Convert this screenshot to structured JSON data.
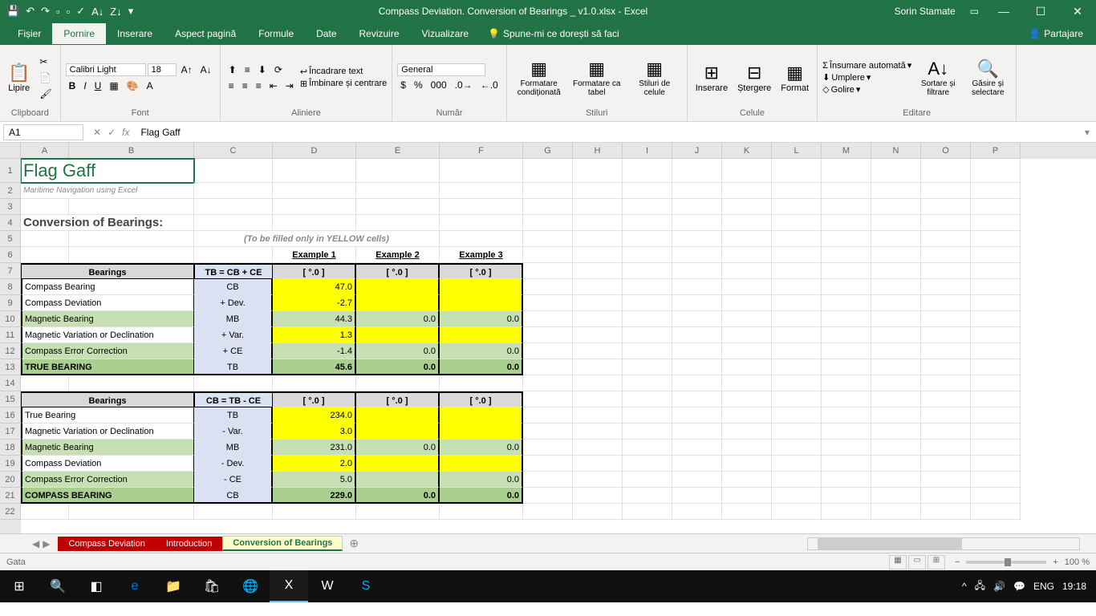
{
  "titleBar": {
    "title": "Compass Deviation. Conversion of Bearings _ v1.0.xlsx - Excel",
    "user": "Sorin Stamate"
  },
  "tabs": {
    "file": "Fișier",
    "home": "Pornire",
    "insert": "Inserare",
    "pageLayout": "Aspect pagină",
    "formulas": "Formule",
    "data": "Date",
    "review": "Revizuire",
    "view": "Vizualizare",
    "tellMe": "Spune-mi ce dorești să faci",
    "share": "Partajare"
  },
  "ribbon": {
    "clipboard": "Clipboard",
    "paste": "Lipire",
    "font": "Font",
    "fontName": "Calibri Light",
    "fontSize": "18",
    "alignment": "Aliniere",
    "wrapText": "Încadrare text",
    "mergeCenter": "Îmbinare și centrare",
    "number": "Număr",
    "numberFormat": "General",
    "styles": "Stiluri",
    "condFormat": "Formatare condiționată",
    "formatTable": "Formatare ca tabel",
    "cellStyles": "Stiluri de celule",
    "cells": "Celule",
    "insert": "Inserare",
    "delete": "Ștergere",
    "format": "Format",
    "editing": "Editare",
    "autoSum": "Însumare automată",
    "fill": "Umplere",
    "clear": "Golire",
    "sortFilter": "Sortare și filtrare",
    "findSelect": "Găsire și selectare"
  },
  "formulaBar": {
    "nameBox": "A1",
    "formula": "Flag Gaff"
  },
  "columns": [
    "A",
    "B",
    "C",
    "D",
    "E",
    "F",
    "G",
    "H",
    "I",
    "J",
    "K",
    "L",
    "M",
    "N",
    "O",
    "P"
  ],
  "content": {
    "a1": "Flag Gaff",
    "a2": "Maritime Navigation using Excel",
    "a4": "Conversion of Bearings:",
    "hint": "(To be filled only in YELLOW cells)",
    "ex1": "Example 1",
    "ex2": "Example 2",
    "ex3": "Example 3",
    "bearings": "Bearings",
    "unit": "[ °.0 ]",
    "tbFormula": "TB = CB + CE",
    "cbFormula": "CB = TB - CE",
    "rows1": [
      {
        "label": "Compass Bearing",
        "code": "CB",
        "d": "47.0",
        "e": "",
        "f": "",
        "style": "white",
        "vstyle": "yellow"
      },
      {
        "label": "Compass Deviation",
        "code": "+ Dev.",
        "d": "-2.7",
        "e": "",
        "f": "",
        "style": "white",
        "vstyle": "yellow"
      },
      {
        "label": "Magnetic Bearing",
        "code": "MB",
        "d": "44.3",
        "e": "0.0",
        "f": "0.0",
        "style": "green",
        "vstyle": "green"
      },
      {
        "label": "Magnetic Variation or Declination",
        "code": "+ Var.",
        "d": "1.3",
        "e": "",
        "f": "",
        "style": "white",
        "vstyle": "yellow"
      },
      {
        "label": "Compass Error Correction",
        "code": "+ CE",
        "d": "-1.4",
        "e": "0.0",
        "f": "0.0",
        "style": "green",
        "vstyle": "green"
      },
      {
        "label": "TRUE BEARING",
        "code": "TB",
        "d": "45.6",
        "e": "0.0",
        "f": "0.0",
        "style": "greenbold",
        "vstyle": "greenbold"
      }
    ],
    "rows2": [
      {
        "label": "True Bearing",
        "code": "TB",
        "d": "234.0",
        "e": "",
        "f": "",
        "style": "white",
        "vstyle": "yellow"
      },
      {
        "label": "Magnetic Variation or Declination",
        "code": "- Var.",
        "d": "3.0",
        "e": "",
        "f": "",
        "style": "white",
        "vstyle": "yellow"
      },
      {
        "label": "Magnetic Bearing",
        "code": "MB",
        "d": "231.0",
        "e": "0.0",
        "f": "0.0",
        "style": "green",
        "vstyle": "green"
      },
      {
        "label": "Compass Deviation",
        "code": "- Dev.",
        "d": "2.0",
        "e": "",
        "f": "",
        "style": "white",
        "vstyle": "yellow"
      },
      {
        "label": "Compass Error Correction",
        "code": "- CE",
        "d": "5.0",
        "e": "",
        "f": "0.0",
        "style": "green",
        "vstyle": "green"
      },
      {
        "label": "COMPASS BEARING",
        "code": "CB",
        "d": "229.0",
        "e": "0.0",
        "f": "0.0",
        "style": "greenbold",
        "vstyle": "greenbold"
      }
    ]
  },
  "sheets": {
    "s1": "Compass Deviation",
    "s2": "Introduction",
    "s3": "Conversion of Bearings"
  },
  "statusBar": {
    "ready": "Gata",
    "zoom": "100 %"
  },
  "taskbar": {
    "lang": "ENG",
    "time": "19:18"
  }
}
